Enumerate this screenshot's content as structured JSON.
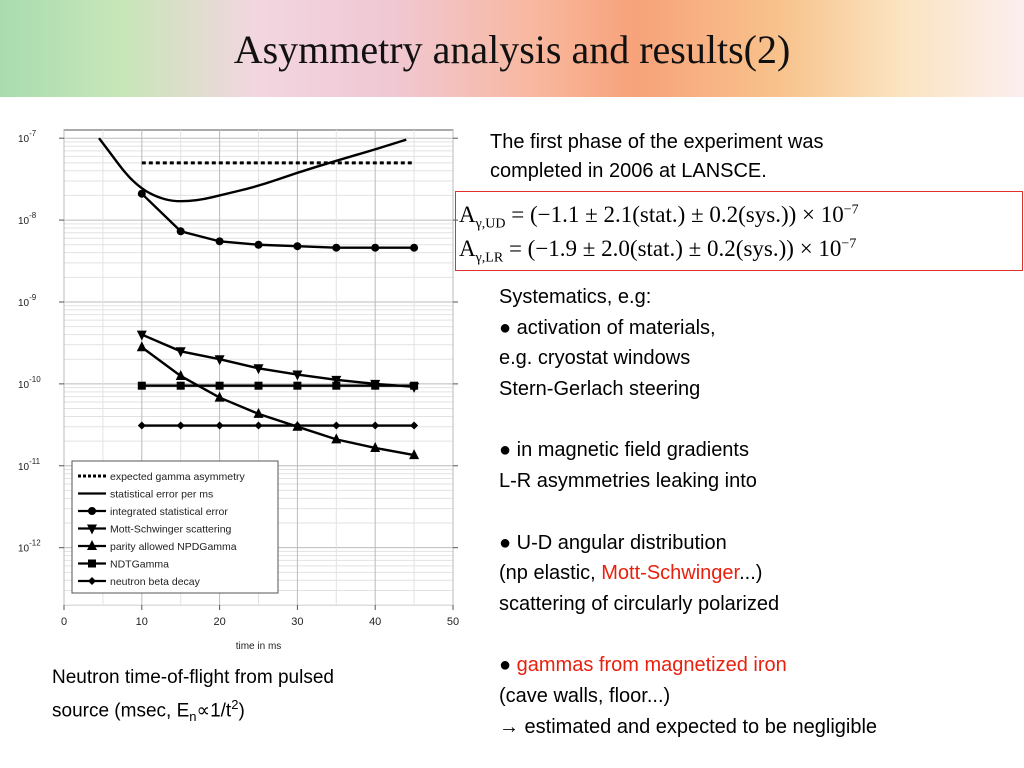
{
  "slide": {
    "title": "Asymmetry analysis and results(2)",
    "intro_1": "The first phase of the experiment was",
    "intro_2": "completed in 2006 at LANSCE.",
    "results": [
      {
        "label": "A",
        "sub": "γ,UD",
        "expr": " = (−1.1 ± 2.1(stat.) ± 0.2(sys.)) × 10",
        "exp": "−7"
      },
      {
        "label": "A",
        "sub": "γ,LR",
        "expr": " = (−1.9 ± 2.0(stat.) ± 0.2(sys.)) × 10",
        "exp": "−7"
      }
    ],
    "systematics": {
      "heading": "Systematics, e.g:",
      "l1": "● activation of materials,",
      "l2": "e.g. cryostat windows",
      "l3": "Stern-Gerlach steering",
      "l4": "● in magnetic field gradients",
      "l5": "L-R asymmetries leaking into",
      "l6": "● U-D angular distribution",
      "l7a": "(np elastic, ",
      "l7b": "Mott-Schwinger",
      "l7c": "...)",
      "l8": "scattering of circularly polarized",
      "l9a": "● ",
      "l9b": "gammas from magnetized iron",
      "l10": "(cave walls, floor...)",
      "l11": "→ estimated and expected to be negligible"
    },
    "caption": {
      "line1": "Neutron time-of-flight from pulsed",
      "line2_a": "source (msec, E",
      "line2_sub": "n",
      "line2_b": "∝1/t",
      "line2_sup": "2",
      "line2_c": ")"
    }
  },
  "chart_data": {
    "type": "line",
    "xlabel": "time in ms",
    "ylabel": "",
    "xlim": [
      0,
      50
    ],
    "ylim_log10": [
      -12.7,
      -6.9
    ],
    "y_scale": "log",
    "x_ticks": [
      0,
      10,
      20,
      30,
      40,
      50
    ],
    "y_tick_bases": [
      {
        "base": "10",
        "exp": "-7"
      },
      {
        "base": "10",
        "exp": "-8"
      },
      {
        "base": "10",
        "exp": "-9"
      },
      {
        "base": "10",
        "exp": "-10"
      },
      {
        "base": "10",
        "exp": "-11"
      },
      {
        "base": "10",
        "exp": "-12"
      }
    ],
    "grid": true,
    "legend_position": "bottom-left",
    "series": [
      {
        "name": "expected gamma asymmetry",
        "style": "dotted",
        "marker": "none",
        "x": [
          10,
          45
        ],
        "y": [
          5e-08,
          5e-08
        ]
      },
      {
        "name": "statistical error per ms",
        "style": "solid",
        "marker": "none",
        "x": [
          4.5,
          6,
          8,
          10,
          12,
          14,
          16,
          18,
          20,
          25,
          30,
          35,
          40,
          44
        ],
        "y": [
          1e-07,
          6.5e-08,
          3.6e-08,
          2.4e-08,
          1.9e-08,
          1.7e-08,
          1.7e-08,
          1.8e-08,
          2e-08,
          2.6e-08,
          3.8e-08,
          5.3e-08,
          7.3e-08,
          9.6e-08
        ]
      },
      {
        "name": "integrated statistical error",
        "style": "solid",
        "marker": "circle",
        "x": [
          10,
          15,
          20,
          25,
          30,
          35,
          40,
          45
        ],
        "y": [
          2.1e-08,
          7.3e-09,
          5.5e-09,
          5e-09,
          4.8e-09,
          4.6e-09,
          4.6e-09,
          4.6e-09
        ]
      },
      {
        "name": "Mott-Schwinger scattering",
        "style": "solid",
        "marker": "triangle-down",
        "x": [
          10,
          15,
          20,
          25,
          30,
          35,
          40,
          45
        ],
        "y": [
          4e-10,
          2.5e-10,
          2e-10,
          1.55e-10,
          1.3e-10,
          1.12e-10,
          1e-10,
          9.2e-11
        ]
      },
      {
        "name": "parity allowed NPDGamma",
        "style": "solid",
        "marker": "triangle-up",
        "x": [
          10,
          15,
          20,
          25,
          30,
          35,
          40,
          45
        ],
        "y": [
          2.8e-10,
          1.25e-10,
          6.8e-11,
          4.3e-11,
          3e-11,
          2.1e-11,
          1.65e-11,
          1.35e-11
        ]
      },
      {
        "name": "NDTGamma",
        "style": "solid",
        "marker": "square",
        "x": [
          10,
          15,
          20,
          25,
          30,
          35,
          40,
          45
        ],
        "y": [
          9.5e-11,
          9.5e-11,
          9.5e-11,
          9.5e-11,
          9.5e-11,
          9.5e-11,
          9.5e-11,
          9.5e-11
        ]
      },
      {
        "name": "neutron beta decay",
        "style": "solid",
        "marker": "diamond",
        "x": [
          10,
          15,
          20,
          25,
          30,
          35,
          40,
          45
        ],
        "y": [
          3.1e-11,
          3.1e-11,
          3.1e-11,
          3.1e-11,
          3.1e-11,
          3.1e-11,
          3.1e-11,
          3.1e-11
        ]
      }
    ]
  }
}
